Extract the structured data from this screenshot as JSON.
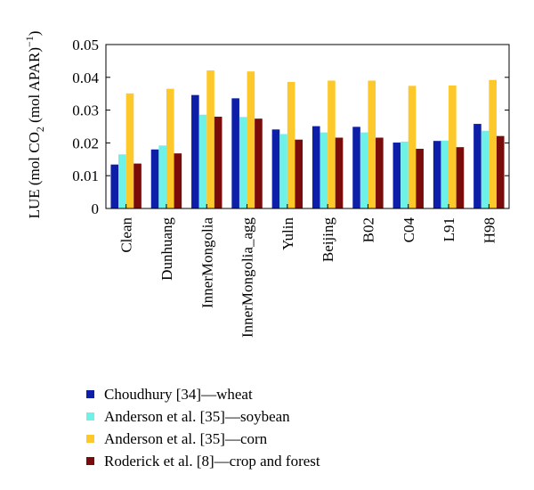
{
  "chart_data": {
    "type": "bar",
    "ylabel_parts": {
      "prefix": "LUE (mol CO",
      "sub": "2",
      "middle": " (mol APAR)",
      "sup": "−1",
      "suffix": ")"
    },
    "ylim": [
      0,
      0.05
    ],
    "yticks": [
      0,
      0.01,
      0.02,
      0.03,
      0.04,
      0.05
    ],
    "ytick_labels": [
      "0",
      "0.01",
      "0.02",
      "0.03",
      "0.04",
      "0.05"
    ],
    "categories": [
      "Clean",
      "Dunhuang",
      "InnerMongolia",
      "InnerMongolia_agg",
      "Yulin",
      "Beijing",
      "B02",
      "C04",
      "L91",
      "H98"
    ],
    "legend_position": "bottom",
    "series": [
      {
        "name": "Choudhury [34]—wheat",
        "color": "#0d1ea8",
        "values": [
          0.0134,
          0.018,
          0.0346,
          0.0336,
          0.0241,
          0.0251,
          0.0249,
          0.0201,
          0.0206,
          0.0258
        ]
      },
      {
        "name": "Anderson et al. [35]—soybean",
        "color": "#6ef2e8",
        "values": [
          0.0165,
          0.0192,
          0.0286,
          0.0279,
          0.0227,
          0.0232,
          0.0232,
          0.0204,
          0.0207,
          0.0237
        ]
      },
      {
        "name": "Anderson et al. [35]—corn",
        "color": "#fcc82a",
        "values": [
          0.0351,
          0.0365,
          0.0421,
          0.0418,
          0.0386,
          0.039,
          0.039,
          0.0374,
          0.0375,
          0.0392
        ]
      },
      {
        "name": "Roderick et al. [8]—crop and forest",
        "color": "#7a0b0b",
        "values": [
          0.0137,
          0.0168,
          0.028,
          0.0274,
          0.021,
          0.0216,
          0.0216,
          0.0182,
          0.0187,
          0.0221
        ]
      }
    ]
  }
}
